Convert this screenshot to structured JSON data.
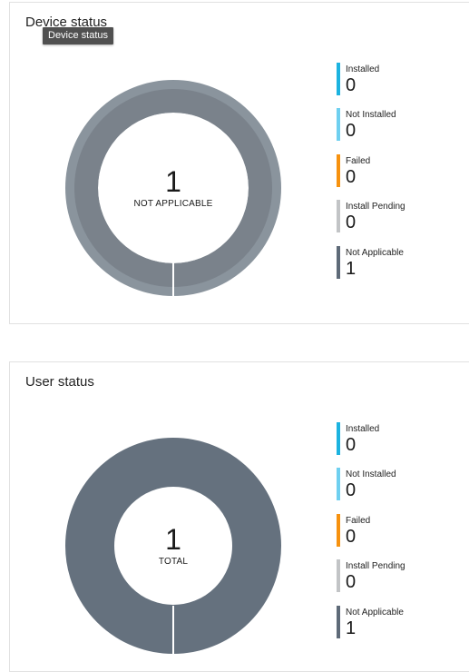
{
  "colors": {
    "installed": "#1cb3e0",
    "not_installed": "#6fd0f0",
    "failed": "#f7920f",
    "install_pending": "#c2c4c6",
    "not_applicable": "#5e6a78",
    "device_donut_outer": "#8a949d",
    "device_donut_inner": "#7a828b",
    "user_donut": "#65717e"
  },
  "device_card": {
    "title": "Device status",
    "tooltip": "Device status",
    "center_value": "1",
    "center_label": "NOT APPLICABLE",
    "legend": [
      {
        "key": "installed",
        "label": "Installed",
        "value": "0"
      },
      {
        "key": "not_installed",
        "label": "Not Installed",
        "value": "0"
      },
      {
        "key": "failed",
        "label": "Failed",
        "value": "0"
      },
      {
        "key": "install_pending",
        "label": "Install Pending",
        "value": "0"
      },
      {
        "key": "not_applicable",
        "label": "Not Applicable",
        "value": "1"
      }
    ]
  },
  "user_card": {
    "title": "User status",
    "center_value": "1",
    "center_label": "TOTAL",
    "legend": [
      {
        "key": "installed",
        "label": "Installed",
        "value": "0"
      },
      {
        "key": "not_installed",
        "label": "Not Installed",
        "value": "0"
      },
      {
        "key": "failed",
        "label": "Failed",
        "value": "0"
      },
      {
        "key": "install_pending",
        "label": "Install Pending",
        "value": "0"
      },
      {
        "key": "not_applicable",
        "label": "Not Applicable",
        "value": "1"
      }
    ]
  }
}
